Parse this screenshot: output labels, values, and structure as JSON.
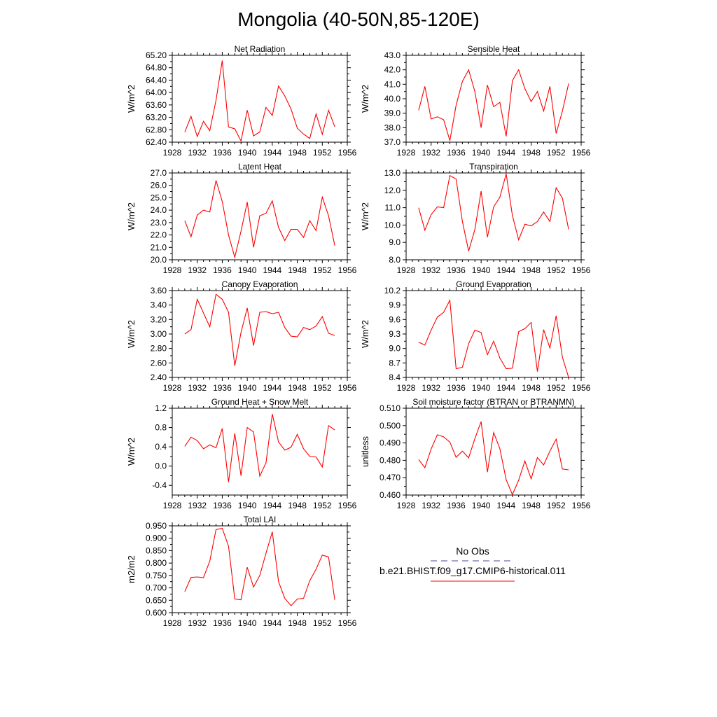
{
  "title": "Mongolia (40-50N,85-120E)",
  "legend": {
    "entries": [
      {
        "label": "No Obs",
        "color": "#4b4b9b",
        "style": "dashed"
      },
      {
        "label": "b.e21.BHIST.f09_g17.CMIP6-historical.011",
        "color": "#ff0000",
        "style": "solid"
      }
    ]
  },
  "chart_data": [
    {
      "type": "line",
      "title": "Net Radiation",
      "ylabel": "W/m^2",
      "xlim": [
        1928,
        1956
      ],
      "xticks": [
        "1928",
        "1932",
        "1936",
        "1940",
        "1944",
        "1948",
        "1952",
        "1956"
      ],
      "ylim": [
        62.4,
        65.2
      ],
      "yticks": [
        "62.40",
        "62.80",
        "63.20",
        "63.60",
        "64.00",
        "64.40",
        "64.80",
        "65.20"
      ],
      "x": [
        1930,
        1931,
        1932,
        1933,
        1934,
        1935,
        1936,
        1937,
        1938,
        1939,
        1940,
        1941,
        1942,
        1943,
        1944,
        1945,
        1946,
        1947,
        1948,
        1949,
        1950,
        1951,
        1952,
        1953,
        1954
      ],
      "series": [
        {
          "color": "#ff0000",
          "values": [
            62.72,
            63.23,
            62.58,
            63.07,
            62.77,
            63.75,
            65.03,
            62.89,
            62.83,
            62.44,
            63.43,
            62.6,
            62.73,
            63.52,
            63.26,
            64.21,
            63.89,
            63.47,
            62.85,
            62.66,
            62.52,
            63.31,
            62.65,
            63.43,
            62.9
          ]
        }
      ]
    },
    {
      "type": "line",
      "title": "Sensible Heat",
      "ylabel": "W/m^2",
      "xlim": [
        1928,
        1956
      ],
      "xticks": [
        "1928",
        "1932",
        "1936",
        "1940",
        "1944",
        "1948",
        "1952",
        "1956"
      ],
      "ylim": [
        37.0,
        43.0
      ],
      "yticks": [
        "37.0",
        "38.0",
        "39.0",
        "40.0",
        "41.0",
        "42.0",
        "43.0"
      ],
      "x": [
        1930,
        1931,
        1932,
        1933,
        1934,
        1935,
        1936,
        1937,
        1938,
        1939,
        1940,
        1941,
        1942,
        1943,
        1944,
        1945,
        1946,
        1947,
        1948,
        1949,
        1950,
        1951,
        1952,
        1953,
        1954
      ],
      "series": [
        {
          "color": "#ff0000",
          "values": [
            39.2,
            40.85,
            38.6,
            38.75,
            38.55,
            37.1,
            39.55,
            41.2,
            42.0,
            40.5,
            38.0,
            40.95,
            39.45,
            39.75,
            37.4,
            41.25,
            42.0,
            40.7,
            39.8,
            40.5,
            39.15,
            40.85,
            37.6,
            39.15,
            41.05
          ]
        }
      ]
    },
    {
      "type": "line",
      "title": "Latent Heat",
      "ylabel": "W/m^2",
      "xlim": [
        1928,
        1956
      ],
      "xticks": [
        "1928",
        "1932",
        "1936",
        "1940",
        "1944",
        "1948",
        "1952",
        "1956"
      ],
      "ylim": [
        20.0,
        27.0
      ],
      "yticks": [
        "20.0",
        "21.0",
        "22.0",
        "23.0",
        "24.0",
        "25.0",
        "26.0",
        "27.0"
      ],
      "x": [
        1930,
        1931,
        1932,
        1933,
        1934,
        1935,
        1936,
        1937,
        1938,
        1939,
        1940,
        1941,
        1942,
        1943,
        1944,
        1945,
        1946,
        1947,
        1948,
        1949,
        1950,
        1951,
        1952,
        1953,
        1954
      ],
      "series": [
        {
          "color": "#ff0000",
          "values": [
            23.15,
            21.85,
            23.6,
            24.0,
            23.85,
            26.4,
            24.7,
            22.0,
            20.2,
            22.3,
            24.65,
            21.0,
            23.55,
            23.75,
            24.75,
            22.6,
            21.55,
            22.45,
            22.45,
            21.8,
            23.15,
            22.35,
            25.05,
            23.55,
            21.15
          ]
        }
      ]
    },
    {
      "type": "line",
      "title": "Transpiration",
      "ylabel": "W/m^2",
      "xlim": [
        1928,
        1956
      ],
      "xticks": [
        "1928",
        "1932",
        "1936",
        "1940",
        "1944",
        "1948",
        "1952",
        "1956"
      ],
      "ylim": [
        8.0,
        13.0
      ],
      "yticks": [
        "8.0",
        "9.0",
        "10.0",
        "11.0",
        "12.0",
        "13.0"
      ],
      "x": [
        1930,
        1931,
        1932,
        1933,
        1934,
        1935,
        1936,
        1937,
        1938,
        1939,
        1940,
        1941,
        1942,
        1943,
        1944,
        1945,
        1946,
        1947,
        1948,
        1949,
        1950,
        1951,
        1952,
        1953,
        1954
      ],
      "series": [
        {
          "color": "#ff0000",
          "values": [
            11.0,
            9.7,
            10.6,
            11.05,
            11.0,
            12.85,
            12.65,
            10.2,
            8.5,
            9.75,
            11.95,
            9.3,
            11.05,
            11.6,
            12.95,
            10.55,
            9.15,
            10.05,
            9.95,
            10.2,
            10.75,
            10.2,
            12.15,
            11.55,
            9.75
          ]
        }
      ]
    },
    {
      "type": "line",
      "title": "Canopy Evaporation",
      "ylabel": "W/m^2",
      "xlim": [
        1928,
        1956
      ],
      "xticks": [
        "1928",
        "1932",
        "1936",
        "1940",
        "1944",
        "1948",
        "1952",
        "1956"
      ],
      "ylim": [
        2.4,
        3.6
      ],
      "yticks": [
        "2.40",
        "2.60",
        "2.80",
        "3.00",
        "3.20",
        "3.40",
        "3.60"
      ],
      "x": [
        1930,
        1931,
        1932,
        1933,
        1934,
        1935,
        1936,
        1937,
        1938,
        1939,
        1940,
        1941,
        1942,
        1943,
        1944,
        1945,
        1946,
        1947,
        1948,
        1949,
        1950,
        1951,
        1952,
        1953,
        1954
      ],
      "series": [
        {
          "color": "#ff0000",
          "values": [
            3.0,
            3.06,
            3.48,
            3.29,
            3.1,
            3.55,
            3.48,
            3.3,
            2.56,
            3.02,
            3.36,
            2.84,
            3.3,
            3.31,
            3.28,
            3.3,
            3.09,
            2.97,
            2.96,
            3.09,
            3.06,
            3.11,
            3.24,
            3.01,
            2.98
          ]
        }
      ]
    },
    {
      "type": "line",
      "title": "Ground Evaporation",
      "ylabel": "W/m^2",
      "xlim": [
        1928,
        1956
      ],
      "xticks": [
        "1928",
        "1932",
        "1936",
        "1940",
        "1944",
        "1948",
        "1952",
        "1956"
      ],
      "ylim": [
        8.4,
        10.2
      ],
      "yticks": [
        "8.4",
        "8.7",
        "9.0",
        "9.3",
        "9.6",
        "9.9",
        "10.2"
      ],
      "x": [
        1930,
        1931,
        1932,
        1933,
        1934,
        1935,
        1936,
        1937,
        1938,
        1939,
        1940,
        1941,
        1942,
        1943,
        1944,
        1945,
        1946,
        1947,
        1948,
        1949,
        1950,
        1951,
        1952,
        1953,
        1954
      ],
      "series": [
        {
          "color": "#ff0000",
          "values": [
            9.13,
            9.07,
            9.38,
            9.65,
            9.75,
            10.0,
            8.58,
            8.61,
            9.1,
            9.38,
            9.33,
            8.87,
            9.15,
            8.8,
            8.58,
            8.59,
            9.35,
            9.41,
            9.54,
            8.52,
            9.39,
            9.01,
            9.68,
            8.82,
            8.4
          ]
        }
      ]
    },
    {
      "type": "line",
      "title": "Ground Heat + Snow Melt",
      "ylabel": "W/m^2",
      "xlim": [
        1928,
        1956
      ],
      "xticks": [
        "1928",
        "1932",
        "1936",
        "1940",
        "1944",
        "1948",
        "1952",
        "1956"
      ],
      "ylim": [
        -0.6,
        1.2
      ],
      "yticks": [
        "-0.4",
        "0.0",
        "0.4",
        "0.8",
        "1.2"
      ],
      "x": [
        1930,
        1931,
        1932,
        1933,
        1934,
        1935,
        1936,
        1937,
        1938,
        1939,
        1940,
        1941,
        1942,
        1943,
        1944,
        1945,
        1946,
        1947,
        1948,
        1949,
        1950,
        1951,
        1952,
        1953,
        1954
      ],
      "series": [
        {
          "color": "#ff0000",
          "values": [
            0.41,
            0.6,
            0.53,
            0.36,
            0.44,
            0.38,
            0.78,
            -0.33,
            0.68,
            -0.2,
            0.8,
            0.71,
            -0.21,
            0.07,
            1.08,
            0.5,
            0.33,
            0.39,
            0.66,
            0.36,
            0.2,
            0.19,
            -0.02,
            0.84,
            0.75
          ]
        }
      ]
    },
    {
      "type": "line",
      "title": "Soil moisture factor (BTRAN or BTRANMN)",
      "ylabel": "unitless",
      "xlim": [
        1928,
        1956
      ],
      "xticks": [
        "1928",
        "1932",
        "1936",
        "1940",
        "1944",
        "1948",
        "1952",
        "1956"
      ],
      "ylim": [
        0.46,
        0.51
      ],
      "yticks": [
        "0.460",
        "0.470",
        "0.480",
        "0.490",
        "0.500",
        "0.510"
      ],
      "x": [
        1930,
        1931,
        1932,
        1933,
        1934,
        1935,
        1936,
        1937,
        1938,
        1939,
        1940,
        1941,
        1942,
        1943,
        1944,
        1945,
        1946,
        1947,
        1948,
        1949,
        1950,
        1951,
        1952,
        1953,
        1954
      ],
      "series": [
        {
          "color": "#ff0000",
          "values": [
            0.4805,
            0.4757,
            0.4865,
            0.4947,
            0.4935,
            0.4905,
            0.4817,
            0.4853,
            0.4814,
            0.4925,
            0.5023,
            0.4732,
            0.496,
            0.4867,
            0.4688,
            0.4603,
            0.4685,
            0.4796,
            0.4693,
            0.4816,
            0.4773,
            0.4853,
            0.4922,
            0.475,
            0.4745
          ]
        }
      ]
    },
    {
      "type": "line",
      "title": "Total LAI",
      "ylabel": "m2/m2",
      "xlim": [
        1928,
        1956
      ],
      "xticks": [
        "1928",
        "1932",
        "1936",
        "1940",
        "1944",
        "1948",
        "1952",
        "1956"
      ],
      "ylim": [
        0.6,
        0.95
      ],
      "yticks": [
        "0.600",
        "0.650",
        "0.700",
        "0.750",
        "0.800",
        "0.850",
        "0.900",
        "0.950"
      ],
      "x": [
        1930,
        1931,
        1932,
        1933,
        1934,
        1935,
        1936,
        1937,
        1938,
        1939,
        1940,
        1941,
        1942,
        1943,
        1944,
        1945,
        1946,
        1947,
        1948,
        1949,
        1950,
        1951,
        1952,
        1953,
        1954
      ],
      "series": [
        {
          "color": "#ff0000",
          "values": [
            0.685,
            0.742,
            0.744,
            0.741,
            0.808,
            0.935,
            0.94,
            0.868,
            0.655,
            0.652,
            0.783,
            0.703,
            0.75,
            0.84,
            0.926,
            0.725,
            0.658,
            0.628,
            0.655,
            0.658,
            0.729,
            0.775,
            0.832,
            0.825,
            0.652
          ]
        }
      ]
    }
  ]
}
